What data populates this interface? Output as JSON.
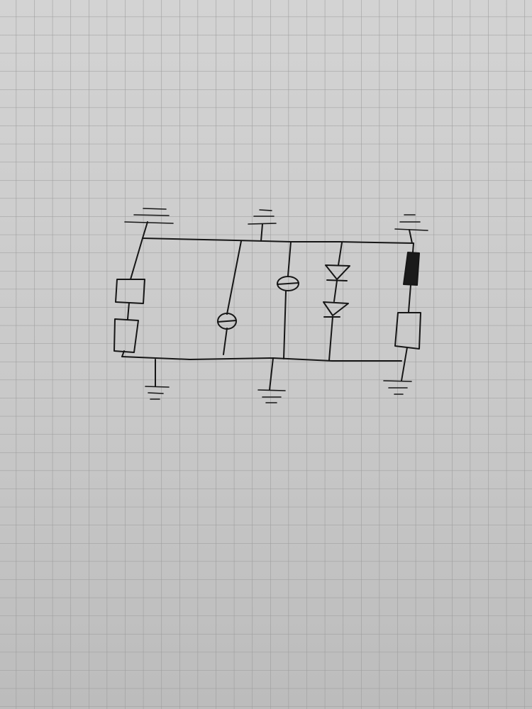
{
  "sheet": {
    "paper": "graph-paper",
    "ink_color": "#161616",
    "grid_color": "#9a9a9a",
    "paper_color_top": "#d2d2d2",
    "paper_color_bottom": "#bdbdbd"
  },
  "sketch": {
    "kind": "hand-drawn circuit schematic",
    "text_labels": [],
    "top_rail_ground_symbols": 3,
    "bottom_rail_ground_symbols": 3,
    "branches": [
      {
        "position": "left",
        "components": [
          "resistor",
          "resistor"
        ]
      },
      {
        "position": "middle-left",
        "components": [
          "ellipse-element"
        ]
      },
      {
        "position": "middle",
        "components": [
          "ellipse-element"
        ]
      },
      {
        "position": "middle-right",
        "components": [
          "diode",
          "diode"
        ]
      },
      {
        "position": "right",
        "components": [
          "filled-resistor",
          "resistor"
        ]
      }
    ]
  }
}
